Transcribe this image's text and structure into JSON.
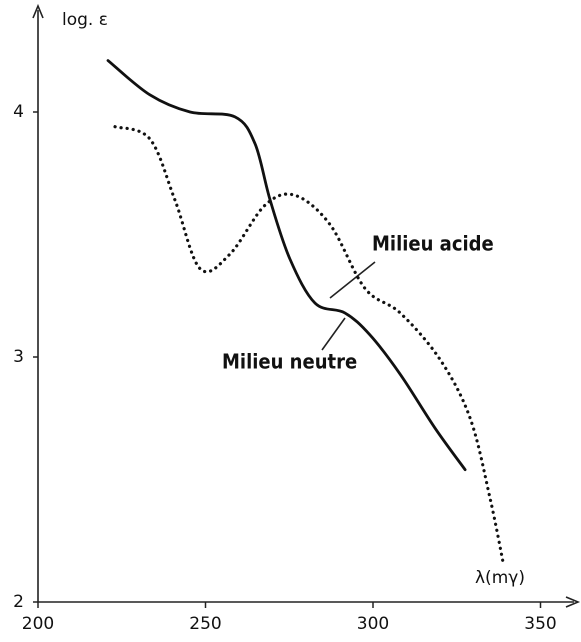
{
  "chart_data": {
    "type": "line",
    "y_label": "log. ε",
    "x_label": "λ(mγ)",
    "annotations": [
      "Milieu acide",
      "Milieu neutre"
    ],
    "xlim": [
      200,
      360
    ],
    "ylim": [
      2,
      4.3
    ],
    "xticks": [
      200,
      250,
      300,
      350
    ],
    "yticks": [
      2,
      3,
      4
    ],
    "series": [
      {
        "name": "Milieu neutre",
        "color": "#111111",
        "style": "solid",
        "x": [
          220.9,
          233.4,
          245.4,
          258.8,
          264.8,
          269.3,
          275.2,
          282.7,
          291.6,
          299.1,
          308.1,
          318.5,
          327.5
        ],
        "values": [
          4.21,
          4.07,
          4.0,
          3.98,
          3.87,
          3.64,
          3.4,
          3.22,
          3.18,
          3.09,
          2.93,
          2.71,
          2.54
        ]
      },
      {
        "name": "Milieu acide",
        "color": "#111111",
        "style": "dotted",
        "x": [
          223,
          233.4,
          240.9,
          248.4,
          257.3,
          267.8,
          276.7,
          287.2,
          297.6,
          308.1,
          320,
          329,
          335,
          339
        ],
        "values": [
          3.94,
          3.89,
          3.64,
          3.36,
          3.42,
          3.62,
          3.66,
          3.54,
          3.28,
          3.18,
          2.99,
          2.75,
          2.42,
          2.15
        ]
      }
    ]
  }
}
